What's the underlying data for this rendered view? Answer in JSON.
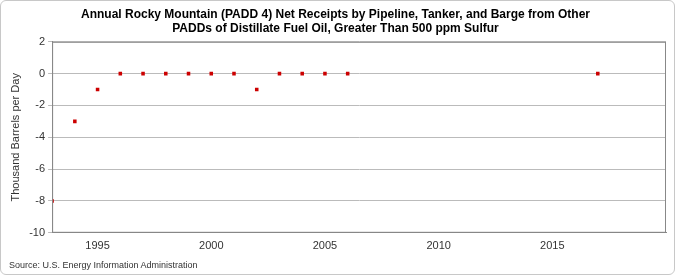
{
  "chart_data": {
    "type": "scatter",
    "title": [
      "Annual Rocky Mountain (PADD 4) Net Receipts by Pipeline, Tanker, and Barge from Other",
      "PADDs of Distillate Fuel Oil, Greater Than 500 ppm Sulfur"
    ],
    "y_label": "Thousand Barrels per Day",
    "source": "Source: U.S. Energy Information Administration",
    "x": [
      1993,
      1994,
      1995,
      1996,
      1997,
      1998,
      1999,
      2000,
      2001,
      2002,
      2003,
      2004,
      2005,
      2006,
      2017
    ],
    "values": [
      -8,
      -3,
      -1,
      0,
      0,
      0,
      0,
      0,
      0,
      -1,
      0,
      0,
      0,
      0,
      0
    ],
    "color": "#cc0000",
    "marker": "square",
    "xlim": [
      1993,
      2020
    ],
    "xticks": [
      1995,
      2000,
      2005,
      2010,
      2015
    ],
    "ylim": [
      -10,
      2
    ],
    "yticks": [
      -10,
      -8,
      -6,
      -4,
      -2,
      0,
      2
    ],
    "grid": "y"
  }
}
